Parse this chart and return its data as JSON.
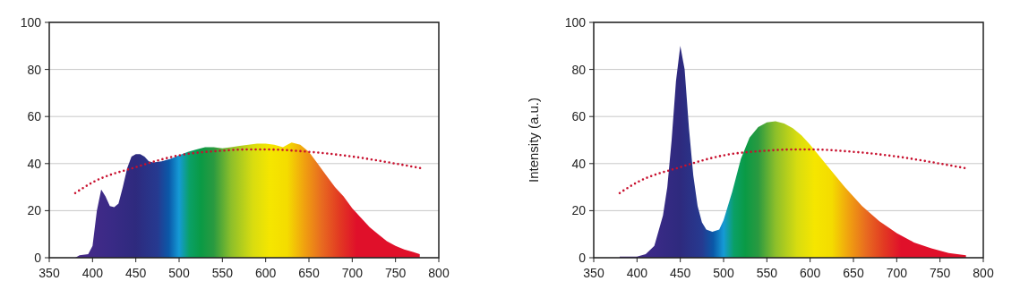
{
  "chart_data": [
    {
      "type": "area",
      "xlim": [
        350,
        800
      ],
      "xticks": [
        350,
        400,
        450,
        500,
        550,
        600,
        650,
        700,
        750,
        800
      ],
      "ylim": [
        0,
        100
      ],
      "yticks": [
        0,
        20,
        40,
        60,
        80,
        100
      ],
      "grid": "y",
      "series": [
        {
          "x": [
            380,
            385,
            395,
            400,
            405,
            410,
            415,
            420,
            425,
            430,
            435,
            440,
            445,
            450,
            455,
            460,
            465,
            470,
            480,
            490,
            500,
            510,
            520,
            530,
            540,
            550,
            560,
            570,
            580,
            590,
            600,
            610,
            620,
            625,
            630,
            640,
            650,
            660,
            670,
            680,
            690,
            700,
            710,
            720,
            730,
            740,
            750,
            760,
            770,
            778
          ],
          "values": [
            0,
            1,
            1.5,
            5,
            20,
            29,
            26,
            22,
            21.5,
            23,
            30,
            38,
            43,
            44,
            44,
            43,
            41,
            40.5,
            41,
            42,
            43.5,
            45,
            46,
            47,
            47,
            46.5,
            47,
            47.5,
            48,
            48.5,
            48.5,
            48,
            47,
            48,
            49,
            48,
            45,
            40,
            35,
            30,
            26,
            21,
            17,
            13,
            10,
            7,
            5,
            3.5,
            2.5,
            1.5
          ]
        },
        {
          "type": "line",
          "color": "#c8102e",
          "line_style": "dotted",
          "x": [
            380,
            400,
            450,
            500,
            550,
            580,
            600,
            650,
            700,
            750,
            780
          ],
          "values": [
            27.5,
            32,
            38.5,
            43.5,
            45.5,
            46,
            46,
            45,
            43,
            40,
            38
          ]
        }
      ]
    },
    {
      "type": "area",
      "ylabel": "Intensity (a.u.)",
      "xlim": [
        350,
        800
      ],
      "xticks": [
        350,
        400,
        450,
        500,
        550,
        600,
        650,
        700,
        750,
        800
      ],
      "ylim": [
        0,
        100
      ],
      "yticks": [
        0,
        20,
        40,
        60,
        80,
        100
      ],
      "grid": "y",
      "series": [
        {
          "x": [
            380,
            400,
            410,
            420,
            430,
            435,
            440,
            445,
            450,
            455,
            460,
            465,
            470,
            475,
            480,
            487,
            495,
            500,
            510,
            520,
            530,
            540,
            550,
            560,
            570,
            580,
            590,
            600,
            620,
            640,
            660,
            680,
            700,
            720,
            740,
            760,
            780
          ],
          "values": [
            0.5,
            0.5,
            1.5,
            5,
            18,
            30,
            50,
            75,
            90,
            80,
            55,
            35,
            22,
            15,
            12,
            11,
            12,
            16,
            28,
            42,
            51,
            55.5,
            57.5,
            58,
            57,
            55,
            52,
            48,
            39,
            30,
            22,
            15.5,
            10.5,
            6.5,
            4,
            2,
            1
          ]
        },
        {
          "type": "line",
          "color": "#c8102e",
          "line_style": "dotted",
          "x": [
            380,
            400,
            450,
            500,
            550,
            580,
            600,
            650,
            700,
            750,
            780
          ],
          "values": [
            27.5,
            32,
            38.5,
            43.5,
            45.5,
            46,
            46,
            45,
            43,
            40,
            38
          ]
        }
      ]
    }
  ]
}
